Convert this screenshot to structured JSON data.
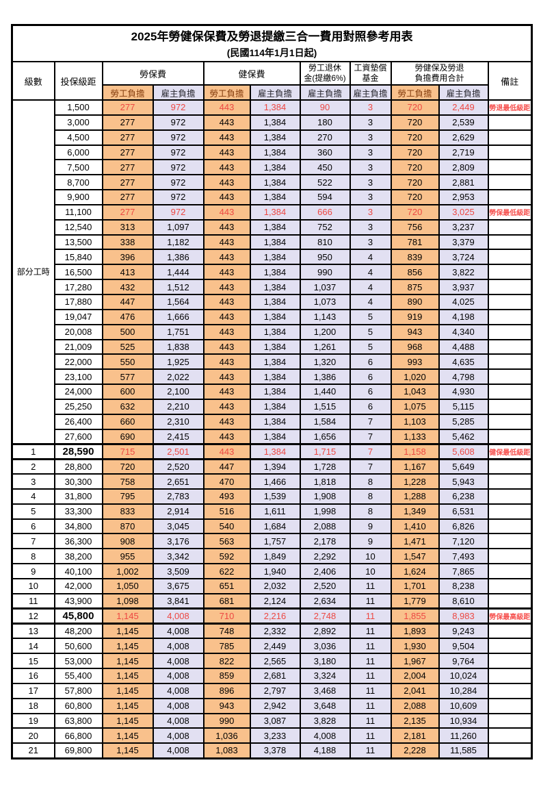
{
  "title": "2025年勞健保保費及勞退提繳三合一費用對照參考用表",
  "subtitle": "(民國114年1月1日起)",
  "colors": {
    "employee_fill": "#F9C18C",
    "employer_fill": "#E2E0F2",
    "highlight_red": "#ED4742",
    "remark_red": "#F6524F",
    "grid": "#000000"
  },
  "header": {
    "level_label": "級數",
    "bracket_label": "投保級距",
    "labor_group": "勞保費",
    "health_group": "健保費",
    "pension_line1": "勞工退休",
    "pension_line2": "金(提繳6%)",
    "wagefund_line1": "工資墊償",
    "wagefund_line2": "基金",
    "total_line1": "勞健保及勞退",
    "total_line2": "負擔費用合計",
    "remark_label": "備註",
    "employee_label": "勞工負擔",
    "employer_label": "雇主負擔"
  },
  "part_time_label": "部分工時",
  "part_time_span": 23,
  "rows": [
    {
      "b": "1,500",
      "v": [
        "277",
        "972",
        "443",
        "1,384",
        "90",
        "3",
        "720",
        "2,449"
      ],
      "r": "勞退最低級距",
      "red": true
    },
    {
      "b": "3,000",
      "v": [
        "277",
        "972",
        "443",
        "1,384",
        "180",
        "3",
        "720",
        "2,539"
      ],
      "r": ""
    },
    {
      "b": "4,500",
      "v": [
        "277",
        "972",
        "443",
        "1,384",
        "270",
        "3",
        "720",
        "2,629"
      ],
      "r": ""
    },
    {
      "b": "6,000",
      "v": [
        "277",
        "972",
        "443",
        "1,384",
        "360",
        "3",
        "720",
        "2,719"
      ],
      "r": ""
    },
    {
      "b": "7,500",
      "v": [
        "277",
        "972",
        "443",
        "1,384",
        "450",
        "3",
        "720",
        "2,809"
      ],
      "r": ""
    },
    {
      "b": "8,700",
      "v": [
        "277",
        "972",
        "443",
        "1,384",
        "522",
        "3",
        "720",
        "2,881"
      ],
      "r": ""
    },
    {
      "b": "9,900",
      "v": [
        "277",
        "972",
        "443",
        "1,384",
        "594",
        "3",
        "720",
        "2,953"
      ],
      "r": ""
    },
    {
      "b": "11,100",
      "v": [
        "277",
        "972",
        "443",
        "1,384",
        "666",
        "3",
        "720",
        "3,025"
      ],
      "r": "勞保最低級距",
      "red": true
    },
    {
      "b": "12,540",
      "v": [
        "313",
        "1,097",
        "443",
        "1,384",
        "752",
        "3",
        "756",
        "3,237"
      ],
      "r": ""
    },
    {
      "b": "13,500",
      "v": [
        "338",
        "1,182",
        "443",
        "1,384",
        "810",
        "3",
        "781",
        "3,379"
      ],
      "r": ""
    },
    {
      "b": "15,840",
      "v": [
        "396",
        "1,386",
        "443",
        "1,384",
        "950",
        "4",
        "839",
        "3,724"
      ],
      "r": ""
    },
    {
      "b": "16,500",
      "v": [
        "413",
        "1,444",
        "443",
        "1,384",
        "990",
        "4",
        "856",
        "3,822"
      ],
      "r": ""
    },
    {
      "b": "17,280",
      "v": [
        "432",
        "1,512",
        "443",
        "1,384",
        "1,037",
        "4",
        "875",
        "3,937"
      ],
      "r": ""
    },
    {
      "b": "17,880",
      "v": [
        "447",
        "1,564",
        "443",
        "1,384",
        "1,073",
        "4",
        "890",
        "4,025"
      ],
      "r": ""
    },
    {
      "b": "19,047",
      "v": [
        "476",
        "1,666",
        "443",
        "1,384",
        "1,143",
        "5",
        "919",
        "4,198"
      ],
      "r": ""
    },
    {
      "b": "20,008",
      "v": [
        "500",
        "1,751",
        "443",
        "1,384",
        "1,200",
        "5",
        "943",
        "4,340"
      ],
      "r": ""
    },
    {
      "b": "21,009",
      "v": [
        "525",
        "1,838",
        "443",
        "1,384",
        "1,261",
        "5",
        "968",
        "4,488"
      ],
      "r": ""
    },
    {
      "b": "22,000",
      "v": [
        "550",
        "1,925",
        "443",
        "1,384",
        "1,320",
        "6",
        "993",
        "4,635"
      ],
      "r": ""
    },
    {
      "b": "23,100",
      "v": [
        "577",
        "2,022",
        "443",
        "1,384",
        "1,386",
        "6",
        "1,020",
        "4,798"
      ],
      "r": ""
    },
    {
      "b": "24,000",
      "v": [
        "600",
        "2,100",
        "443",
        "1,384",
        "1,440",
        "6",
        "1,043",
        "4,930"
      ],
      "r": ""
    },
    {
      "b": "25,250",
      "v": [
        "632",
        "2,210",
        "443",
        "1,384",
        "1,515",
        "6",
        "1,075",
        "5,115"
      ],
      "r": ""
    },
    {
      "b": "26,400",
      "v": [
        "660",
        "2,310",
        "443",
        "1,384",
        "1,584",
        "7",
        "1,103",
        "5,285"
      ],
      "r": ""
    },
    {
      "b": "27,600",
      "v": [
        "690",
        "2,415",
        "443",
        "1,384",
        "1,656",
        "7",
        "1,133",
        "5,462"
      ],
      "r": ""
    },
    {
      "lv": "1",
      "b": "28,590",
      "v": [
        "715",
        "2,501",
        "443",
        "1,384",
        "1,715",
        "7",
        "1,158",
        "5,608"
      ],
      "r": "健保最低級距",
      "red": true,
      "big": true,
      "thick": true
    },
    {
      "lv": "2",
      "b": "28,800",
      "v": [
        "720",
        "2,520",
        "447",
        "1,394",
        "1,728",
        "7",
        "1,167",
        "5,649"
      ],
      "r": ""
    },
    {
      "lv": "3",
      "b": "30,300",
      "v": [
        "758",
        "2,651",
        "470",
        "1,466",
        "1,818",
        "8",
        "1,228",
        "5,943"
      ],
      "r": ""
    },
    {
      "lv": "4",
      "b": "31,800",
      "v": [
        "795",
        "2,783",
        "493",
        "1,539",
        "1,908",
        "8",
        "1,288",
        "6,238"
      ],
      "r": ""
    },
    {
      "lv": "5",
      "b": "33,300",
      "v": [
        "833",
        "2,914",
        "516",
        "1,611",
        "1,998",
        "8",
        "1,349",
        "6,531"
      ],
      "r": ""
    },
    {
      "lv": "6",
      "b": "34,800",
      "v": [
        "870",
        "3,045",
        "540",
        "1,684",
        "2,088",
        "9",
        "1,410",
        "6,826"
      ],
      "r": ""
    },
    {
      "lv": "7",
      "b": "36,300",
      "v": [
        "908",
        "3,176",
        "563",
        "1,757",
        "2,178",
        "9",
        "1,471",
        "7,120"
      ],
      "r": ""
    },
    {
      "lv": "8",
      "b": "38,200",
      "v": [
        "955",
        "3,342",
        "592",
        "1,849",
        "2,292",
        "10",
        "1,547",
        "7,493"
      ],
      "r": ""
    },
    {
      "lv": "9",
      "b": "40,100",
      "v": [
        "1,002",
        "3,509",
        "622",
        "1,940",
        "2,406",
        "10",
        "1,624",
        "7,865"
      ],
      "r": ""
    },
    {
      "lv": "10",
      "b": "42,000",
      "v": [
        "1,050",
        "3,675",
        "651",
        "2,032",
        "2,520",
        "11",
        "1,701",
        "8,238"
      ],
      "r": ""
    },
    {
      "lv": "11",
      "b": "43,900",
      "v": [
        "1,098",
        "3,841",
        "681",
        "2,124",
        "2,634",
        "11",
        "1,779",
        "8,610"
      ],
      "r": ""
    },
    {
      "lv": "12",
      "b": "45,800",
      "v": [
        "1,145",
        "4,008",
        "710",
        "2,216",
        "2,748",
        "11",
        "1,855",
        "8,983"
      ],
      "r": "勞保最高級距",
      "red": true,
      "big": true,
      "thick": true
    },
    {
      "lv": "13",
      "b": "48,200",
      "v": [
        "1,145",
        "4,008",
        "748",
        "2,332",
        "2,892",
        "11",
        "1,893",
        "9,243"
      ],
      "r": ""
    },
    {
      "lv": "14",
      "b": "50,600",
      "v": [
        "1,145",
        "4,008",
        "785",
        "2,449",
        "3,036",
        "11",
        "1,930",
        "9,504"
      ],
      "r": ""
    },
    {
      "lv": "15",
      "b": "53,000",
      "v": [
        "1,145",
        "4,008",
        "822",
        "2,565",
        "3,180",
        "11",
        "1,967",
        "9,764"
      ],
      "r": ""
    },
    {
      "lv": "16",
      "b": "55,400",
      "v": [
        "1,145",
        "4,008",
        "859",
        "2,681",
        "3,324",
        "11",
        "2,004",
        "10,024"
      ],
      "r": ""
    },
    {
      "lv": "17",
      "b": "57,800",
      "v": [
        "1,145",
        "4,008",
        "896",
        "2,797",
        "3,468",
        "11",
        "2,041",
        "10,284"
      ],
      "r": ""
    },
    {
      "lv": "18",
      "b": "60,800",
      "v": [
        "1,145",
        "4,008",
        "943",
        "2,942",
        "3,648",
        "11",
        "2,088",
        "10,609"
      ],
      "r": ""
    },
    {
      "lv": "19",
      "b": "63,800",
      "v": [
        "1,145",
        "4,008",
        "990",
        "3,087",
        "3,828",
        "11",
        "2,135",
        "10,934"
      ],
      "r": ""
    },
    {
      "lv": "20",
      "b": "66,800",
      "v": [
        "1,145",
        "4,008",
        "1,036",
        "3,233",
        "4,008",
        "11",
        "2,181",
        "11,260"
      ],
      "r": ""
    },
    {
      "lv": "21",
      "b": "69,800",
      "v": [
        "1,145",
        "4,008",
        "1,083",
        "3,378",
        "4,188",
        "11",
        "2,228",
        "11,585"
      ],
      "r": ""
    }
  ]
}
